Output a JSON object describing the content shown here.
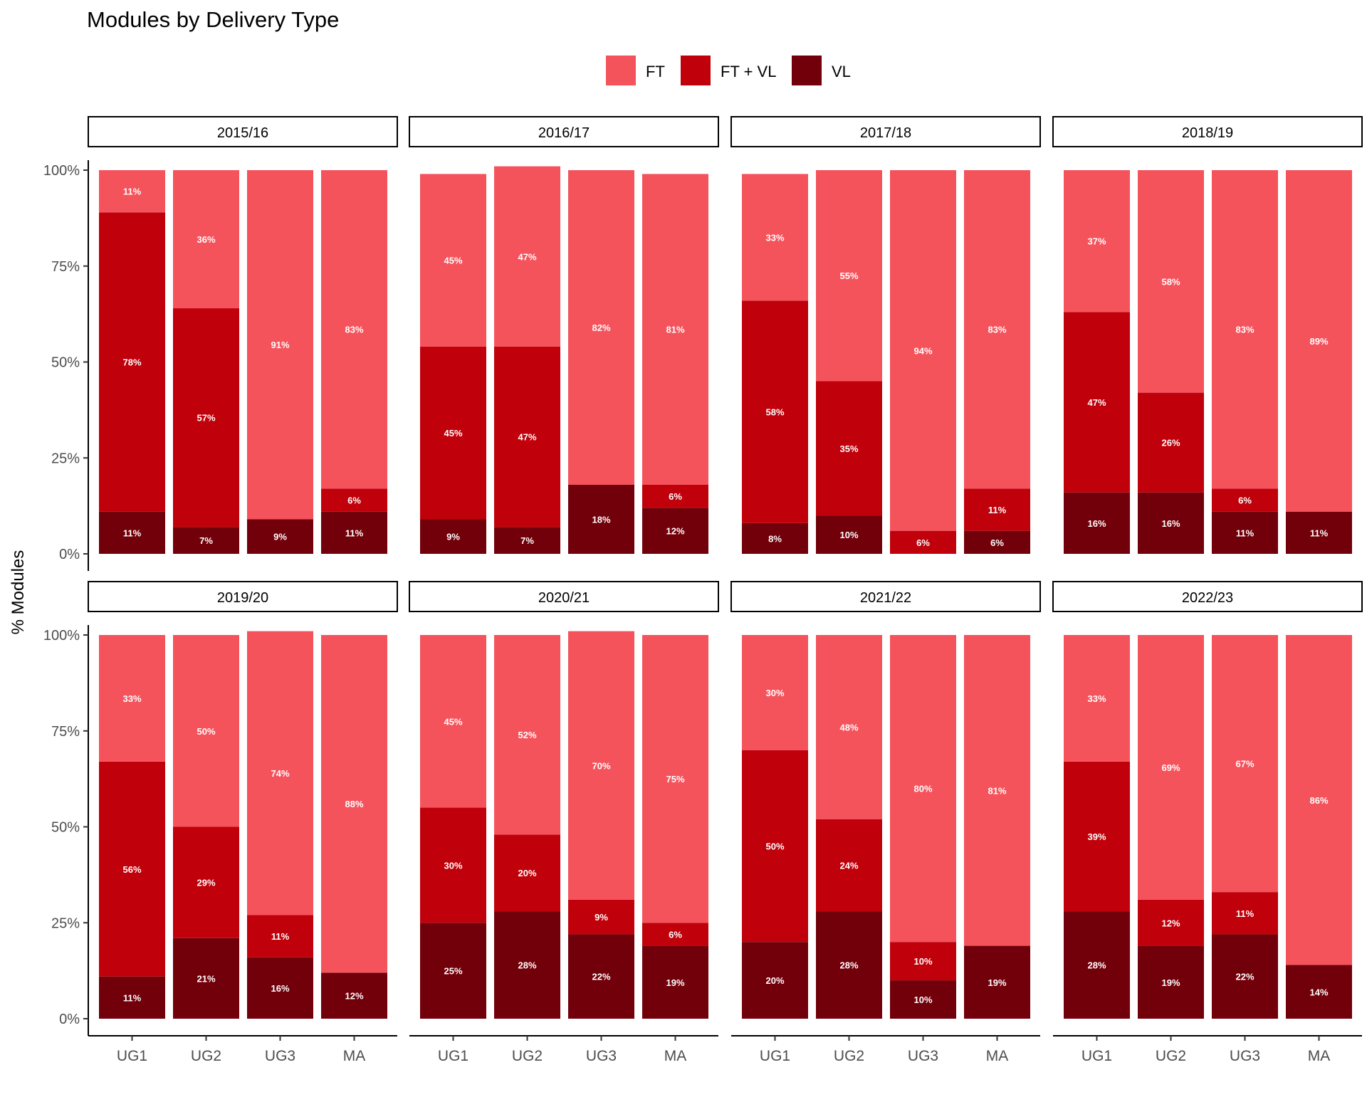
{
  "chart_data": {
    "type": "bar",
    "title": "Modules by Delivery Type",
    "ylabel": "% Modules",
    "xlabel": "",
    "ylim": [
      0,
      100
    ],
    "yticks": [
      "0%",
      "25%",
      "50%",
      "75%",
      "100%"
    ],
    "ytick_values": [
      0,
      25,
      50,
      75,
      100
    ],
    "legend_position": "top",
    "categories": [
      "UG1",
      "UG2",
      "UG3",
      "MA"
    ],
    "series_names": [
      "FT",
      "FT + VL",
      "VL"
    ],
    "colors": {
      "FT": "#f5535c",
      "FT + VL": "#c0000a",
      "VL": "#72000a"
    },
    "stack_order": [
      "VL",
      "FT + VL",
      "FT"
    ],
    "panels": [
      {
        "label": "2015/16",
        "bars": [
          {
            "category": "UG1",
            "VL": 11,
            "FT + VL": 78,
            "FT": 11
          },
          {
            "category": "UG2",
            "VL": 7,
            "FT + VL": 57,
            "FT": 36
          },
          {
            "category": "UG3",
            "VL": 9,
            "FT": 91
          },
          {
            "category": "MA",
            "VL": 11,
            "FT + VL": 6,
            "FT": 83
          }
        ]
      },
      {
        "label": "2016/17",
        "bars": [
          {
            "category": "UG1",
            "VL": 9,
            "FT + VL": 45,
            "FT": 45
          },
          {
            "category": "UG2",
            "VL": 7,
            "FT + VL": 47,
            "FT": 47
          },
          {
            "category": "UG3",
            "VL": 18,
            "FT": 82
          },
          {
            "category": "MA",
            "VL": 12,
            "FT + VL": 6,
            "FT": 81
          }
        ]
      },
      {
        "label": "2017/18",
        "bars": [
          {
            "category": "UG1",
            "VL": 8,
            "FT + VL": 58,
            "FT": 33
          },
          {
            "category": "UG2",
            "VL": 10,
            "FT + VL": 35,
            "FT": 55
          },
          {
            "category": "UG3",
            "FT + VL": 6,
            "FT": 94
          },
          {
            "category": "MA",
            "VL": 6,
            "FT + VL": 11,
            "FT": 83
          }
        ]
      },
      {
        "label": "2018/19",
        "bars": [
          {
            "category": "UG1",
            "VL": 16,
            "FT + VL": 47,
            "FT": 37
          },
          {
            "category": "UG2",
            "VL": 16,
            "FT + VL": 26,
            "FT": 58
          },
          {
            "category": "UG3",
            "VL": 11,
            "FT + VL": 6,
            "FT": 83
          },
          {
            "category": "MA",
            "VL": 11,
            "FT": 89
          }
        ]
      },
      {
        "label": "2019/20",
        "bars": [
          {
            "category": "UG1",
            "VL": 11,
            "FT + VL": 56,
            "FT": 33
          },
          {
            "category": "UG2",
            "VL": 21,
            "FT + VL": 29,
            "FT": 50
          },
          {
            "category": "UG3",
            "VL": 16,
            "FT + VL": 11,
            "FT": 74
          },
          {
            "category": "MA",
            "VL": 12,
            "FT": 88
          }
        ]
      },
      {
        "label": "2020/21",
        "bars": [
          {
            "category": "UG1",
            "VL": 25,
            "FT + VL": 30,
            "FT": 45
          },
          {
            "category": "UG2",
            "VL": 28,
            "FT + VL": 20,
            "FT": 52
          },
          {
            "category": "UG3",
            "VL": 22,
            "FT + VL": 9,
            "FT": 70
          },
          {
            "category": "MA",
            "VL": 19,
            "FT + VL": 6,
            "FT": 75
          }
        ]
      },
      {
        "label": "2021/22",
        "bars": [
          {
            "category": "UG1",
            "VL": 20,
            "FT + VL": 50,
            "FT": 30
          },
          {
            "category": "UG2",
            "VL": 28,
            "FT + VL": 24,
            "FT": 48
          },
          {
            "category": "UG3",
            "VL": 10,
            "FT + VL": 10,
            "FT": 80
          },
          {
            "category": "MA",
            "VL": 19,
            "FT": 81
          }
        ]
      },
      {
        "label": "2022/23",
        "bars": [
          {
            "category": "UG1",
            "VL": 28,
            "FT + VL": 39,
            "FT": 33
          },
          {
            "category": "UG2",
            "VL": 19,
            "FT + VL": 12,
            "FT": 69
          },
          {
            "category": "UG3",
            "VL": 22,
            "FT + VL": 11,
            "FT": 67
          },
          {
            "category": "MA",
            "VL": 14,
            "FT": 86
          }
        ]
      }
    ]
  }
}
